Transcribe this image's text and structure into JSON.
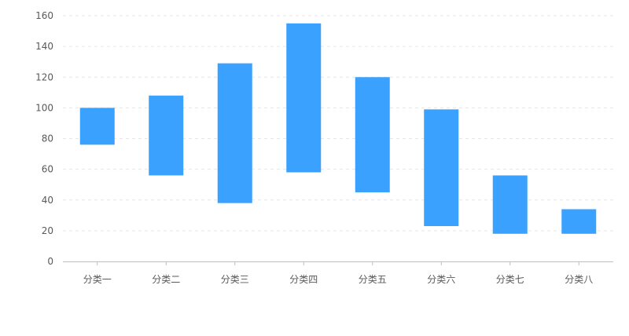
{
  "chart_data": {
    "type": "bar",
    "subtype": "floating-range",
    "categories": [
      "分类一",
      "分类二",
      "分类三",
      "分类四",
      "分类五",
      "分类六",
      "分类七",
      "分类八"
    ],
    "series": [
      {
        "low": [
          76,
          56,
          38,
          58,
          45,
          23,
          18,
          18
        ],
        "high": [
          100,
          108,
          129,
          155,
          120,
          99,
          56,
          34
        ]
      }
    ],
    "ylim": [
      0,
      160
    ],
    "yticks": [
      0,
      20,
      40,
      60,
      80,
      100,
      120,
      140,
      160
    ],
    "grid": true,
    "colors": {
      "bar": "#3ba1ff",
      "grid": "#e6e6e6",
      "axis": "#bfbfbf",
      "text": "#595959"
    }
  }
}
